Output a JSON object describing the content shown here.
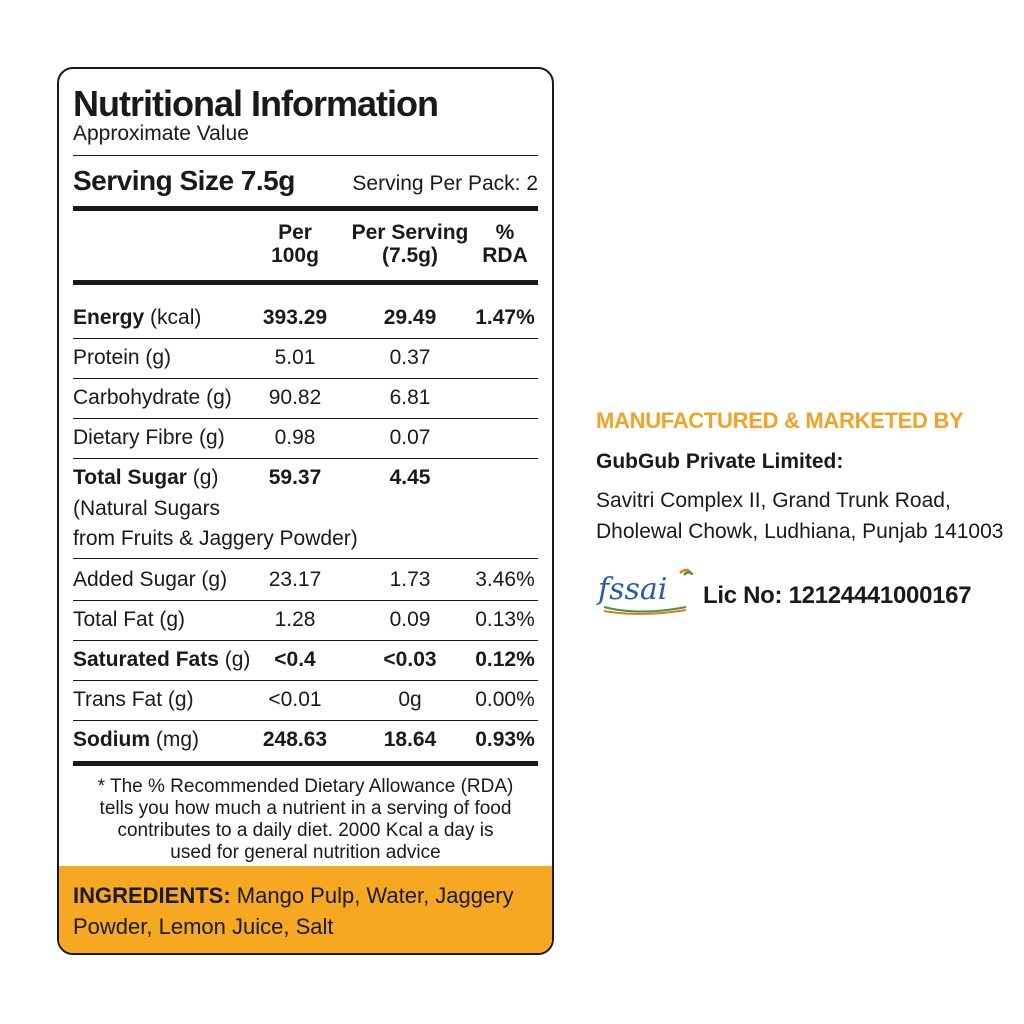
{
  "panel": {
    "title": "Nutritional Information",
    "subtitle": "Approximate Value",
    "serving_size": "Serving Size 7.5g",
    "serving_per_pack": "Serving Per Pack: 2",
    "columns": {
      "per100": [
        "Per",
        "100g"
      ],
      "perserving": [
        "Per Serving",
        "(7.5g)"
      ],
      "rda": [
        "%",
        "RDA"
      ]
    },
    "rows": [
      {
        "name": "Energy",
        "unit": " (kcal)",
        "v1": "393.29",
        "v2": "29.49",
        "v3": "1.47%"
      },
      {
        "name": "Protein (g)",
        "unit": "",
        "v1": "5.01",
        "v2": "0.37",
        "v3": ""
      },
      {
        "name": "Carbohydrate (g)",
        "unit": "",
        "v1": "90.82",
        "v2": "6.81",
        "v3": ""
      },
      {
        "name": "Dietary Fibre (g)",
        "unit": "",
        "v1": "0.98",
        "v2": "0.07",
        "v3": ""
      },
      {
        "name": "Total Sugar",
        "unit": " (g)",
        "v1": "59.37",
        "v2": "4.45",
        "v3": "",
        "note1": "(Natural Sugars",
        "note2": "from Fruits & Jaggery Powder)"
      },
      {
        "name": "Added Sugar (g)",
        "unit": "",
        "v1": "23.17",
        "v2": "1.73",
        "v3": "3.46%"
      },
      {
        "name": "Total Fat (g)",
        "unit": "",
        "v1": "1.28",
        "v2": "0.09",
        "v3": "0.13%"
      },
      {
        "name": "Saturated Fats",
        "unit": " (g)",
        "v1": "<0.4",
        "v2": "<0.03",
        "v3": "0.12%"
      },
      {
        "name": "Trans Fat (g)",
        "unit": "",
        "v1": "<0.01",
        "v2": "0g",
        "v3": "0.00%"
      },
      {
        "name": "Sodium",
        "unit": " (mg)",
        "v1": "248.63",
        "v2": "18.64",
        "v3": "0.93%"
      }
    ],
    "note_lines": [
      "* The %  Recommended Dietary Allowance (RDA)",
      "tells you how much a nutrient in a serving of food",
      "contributes to a daily diet. 2000 Kcal a day is",
      "used for general nutrition advice"
    ],
    "ingredients_label": "INGREDIENTS:",
    "ingredients_text": " Mango Pulp, Water, Jaggery Powder, Lemon Juice, Salt"
  },
  "manufacturer": {
    "heading": "MANUFACTURED & MARKETED BY",
    "name": "GubGub Private Limited:",
    "address_line1": "Savitri Complex II, Grand Trunk Road,",
    "address_line2": "Dholewal Chowk, Ludhiana, Punjab 141003",
    "logo_text": "fssai",
    "license": "Lic No: 12124441000167"
  },
  "colors": {
    "accent_orange": "#f6a822",
    "heading_orange": "#f3a229",
    "fssai_blue": "#2b5aa8",
    "fssai_orange": "#e8742a",
    "fssai_green": "#3f9b3a",
    "text": "#1a1a1a"
  }
}
